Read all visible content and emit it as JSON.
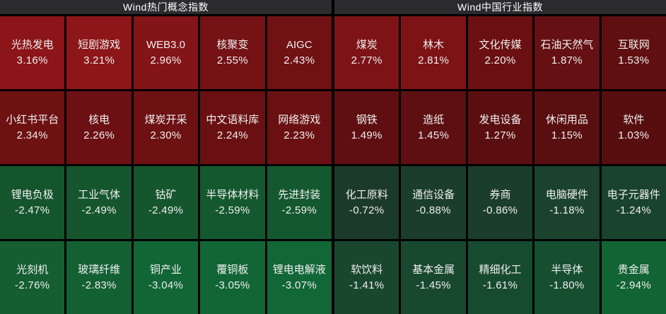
{
  "colors": {
    "background": "#000000",
    "header_bg": "#2B2B2E",
    "header_text": "#FFFFFF",
    "cell_text": "#EFEFEF",
    "gain_max_red": "#8D1618",
    "gain_min_red": "#570E0F",
    "loss_min_green": "#1C3A2A",
    "loss_max_green": "#126737"
  },
  "panels": [
    {
      "id": "concept",
      "title": "Wind热门概念指数",
      "rows": [
        [
          {
            "name": "光热发电",
            "value": "3.16%",
            "color": "#8B1518"
          },
          {
            "name": "短剧游戏",
            "value": "3.21%",
            "color": "#8D1618"
          },
          {
            "name": "WEB3.0",
            "value": "2.96%",
            "color": "#831417"
          },
          {
            "name": "核聚变",
            "value": "2.55%",
            "color": "#741215"
          },
          {
            "name": "AIGC",
            "value": "2.43%",
            "color": "#701114"
          }
        ],
        [
          {
            "name": "小红书平台",
            "value": "2.34%",
            "color": "#6E1113"
          },
          {
            "name": "核电",
            "value": "2.26%",
            "color": "#6C1013"
          },
          {
            "name": "煤炭开采",
            "value": "2.30%",
            "color": "#6D1113"
          },
          {
            "name": "中文语料库",
            "value": "2.24%",
            "color": "#6B1012"
          },
          {
            "name": "网络游戏",
            "value": "2.23%",
            "color": "#6B1012"
          }
        ],
        [
          {
            "name": "锂电负极",
            "value": "-2.47%",
            "color": "#15552E"
          },
          {
            "name": "工业气体",
            "value": "-2.49%",
            "color": "#15562E"
          },
          {
            "name": "钴矿",
            "value": "-2.49%",
            "color": "#15562E"
          },
          {
            "name": "半导体材料",
            "value": "-2.59%",
            "color": "#14582F"
          },
          {
            "name": "先进封装",
            "value": "-2.59%",
            "color": "#14582F"
          }
        ],
        [
          {
            "name": "光刻机",
            "value": "-2.76%",
            "color": "#145E31"
          },
          {
            "name": "玻璃纤维",
            "value": "-2.83%",
            "color": "#136033"
          },
          {
            "name": "铜产业",
            "value": "-3.04%",
            "color": "#126636"
          },
          {
            "name": "覆铜板",
            "value": "-3.05%",
            "color": "#126636"
          },
          {
            "name": "锂电电解液",
            "value": "-3.07%",
            "color": "#126737"
          }
        ]
      ]
    },
    {
      "id": "industry",
      "title": "Wind中国行业指数",
      "rows": [
        [
          {
            "name": "煤炭",
            "value": "2.77%",
            "color": "#7D1316"
          },
          {
            "name": "林木",
            "value": "2.81%",
            "color": "#7E1316"
          },
          {
            "name": "文化传媒",
            "value": "2.20%",
            "color": "#6B1012"
          },
          {
            "name": "石油天然气",
            "value": "1.87%",
            "color": "#651012"
          },
          {
            "name": "互联网",
            "value": "1.53%",
            "color": "#600F11"
          }
        ],
        [
          {
            "name": "钢铁",
            "value": "1.49%",
            "color": "#5F0F11"
          },
          {
            "name": "造纸",
            "value": "1.45%",
            "color": "#5E0F11"
          },
          {
            "name": "发电设备",
            "value": "1.27%",
            "color": "#5B0E10"
          },
          {
            "name": "休闲用品",
            "value": "1.15%",
            "color": "#590E10"
          },
          {
            "name": "软件",
            "value": "1.03%",
            "color": "#570E0F"
          }
        ],
        [
          {
            "name": "化工原料",
            "value": "-0.72%",
            "color": "#1C3A2A"
          },
          {
            "name": "通信设备",
            "value": "-0.88%",
            "color": "#1B3D2B"
          },
          {
            "name": "券商",
            "value": "-0.86%",
            "color": "#1B3D2B"
          },
          {
            "name": "电脑硬件",
            "value": "-1.18%",
            "color": "#1A422D"
          },
          {
            "name": "电子元器件",
            "value": "-1.24%",
            "color": "#19432D"
          }
        ],
        [
          {
            "name": "软饮料",
            "value": "-1.41%",
            "color": "#18472E"
          },
          {
            "name": "基本金属",
            "value": "-1.45%",
            "color": "#18482E"
          },
          {
            "name": "精细化工",
            "value": "-1.61%",
            "color": "#174B2F"
          },
          {
            "name": "半导体",
            "value": "-1.80%",
            "color": "#164E30"
          },
          {
            "name": "贵金属",
            "value": "-2.94%",
            "color": "#136434"
          }
        ]
      ]
    }
  ],
  "chart_data": {
    "type": "heatmap",
    "legend_position": "none",
    "color_rule": "red = gain (brighter red = larger gain), green = loss (brighter green = larger loss)",
    "panels": [
      {
        "title": "Wind热门概念指数",
        "grid": [
          5,
          4
        ],
        "categories": [
          "光热发电",
          "短剧游戏",
          "WEB3.0",
          "核聚变",
          "AIGC",
          "小红书平台",
          "核电",
          "煤炭开采",
          "中文语料库",
          "网络游戏",
          "锂电负极",
          "工业气体",
          "钴矿",
          "半导体材料",
          "先进封装",
          "光刻机",
          "玻璃纤维",
          "铜产业",
          "覆铜板",
          "锂电电解液"
        ],
        "values": [
          3.16,
          3.21,
          2.96,
          2.55,
          2.43,
          2.34,
          2.26,
          2.3,
          2.24,
          2.23,
          -2.47,
          -2.49,
          -2.49,
          -2.59,
          -2.59,
          -2.76,
          -2.83,
          -3.04,
          -3.05,
          -3.07
        ],
        "unit": "%"
      },
      {
        "title": "Wind中国行业指数",
        "grid": [
          5,
          4
        ],
        "categories": [
          "煤炭",
          "林木",
          "文化传媒",
          "石油天然气",
          "互联网",
          "钢铁",
          "造纸",
          "发电设备",
          "休闲用品",
          "软件",
          "化工原料",
          "通信设备",
          "券商",
          "电脑硬件",
          "电子元器件",
          "软饮料",
          "基本金属",
          "精细化工",
          "半导体",
          "贵金属"
        ],
        "values": [
          2.77,
          2.81,
          2.2,
          1.87,
          1.53,
          1.49,
          1.45,
          1.27,
          1.15,
          1.03,
          -0.72,
          -0.88,
          -0.86,
          -1.18,
          -1.24,
          -1.41,
          -1.45,
          -1.61,
          -1.8,
          -2.94
        ],
        "unit": "%"
      }
    ]
  }
}
